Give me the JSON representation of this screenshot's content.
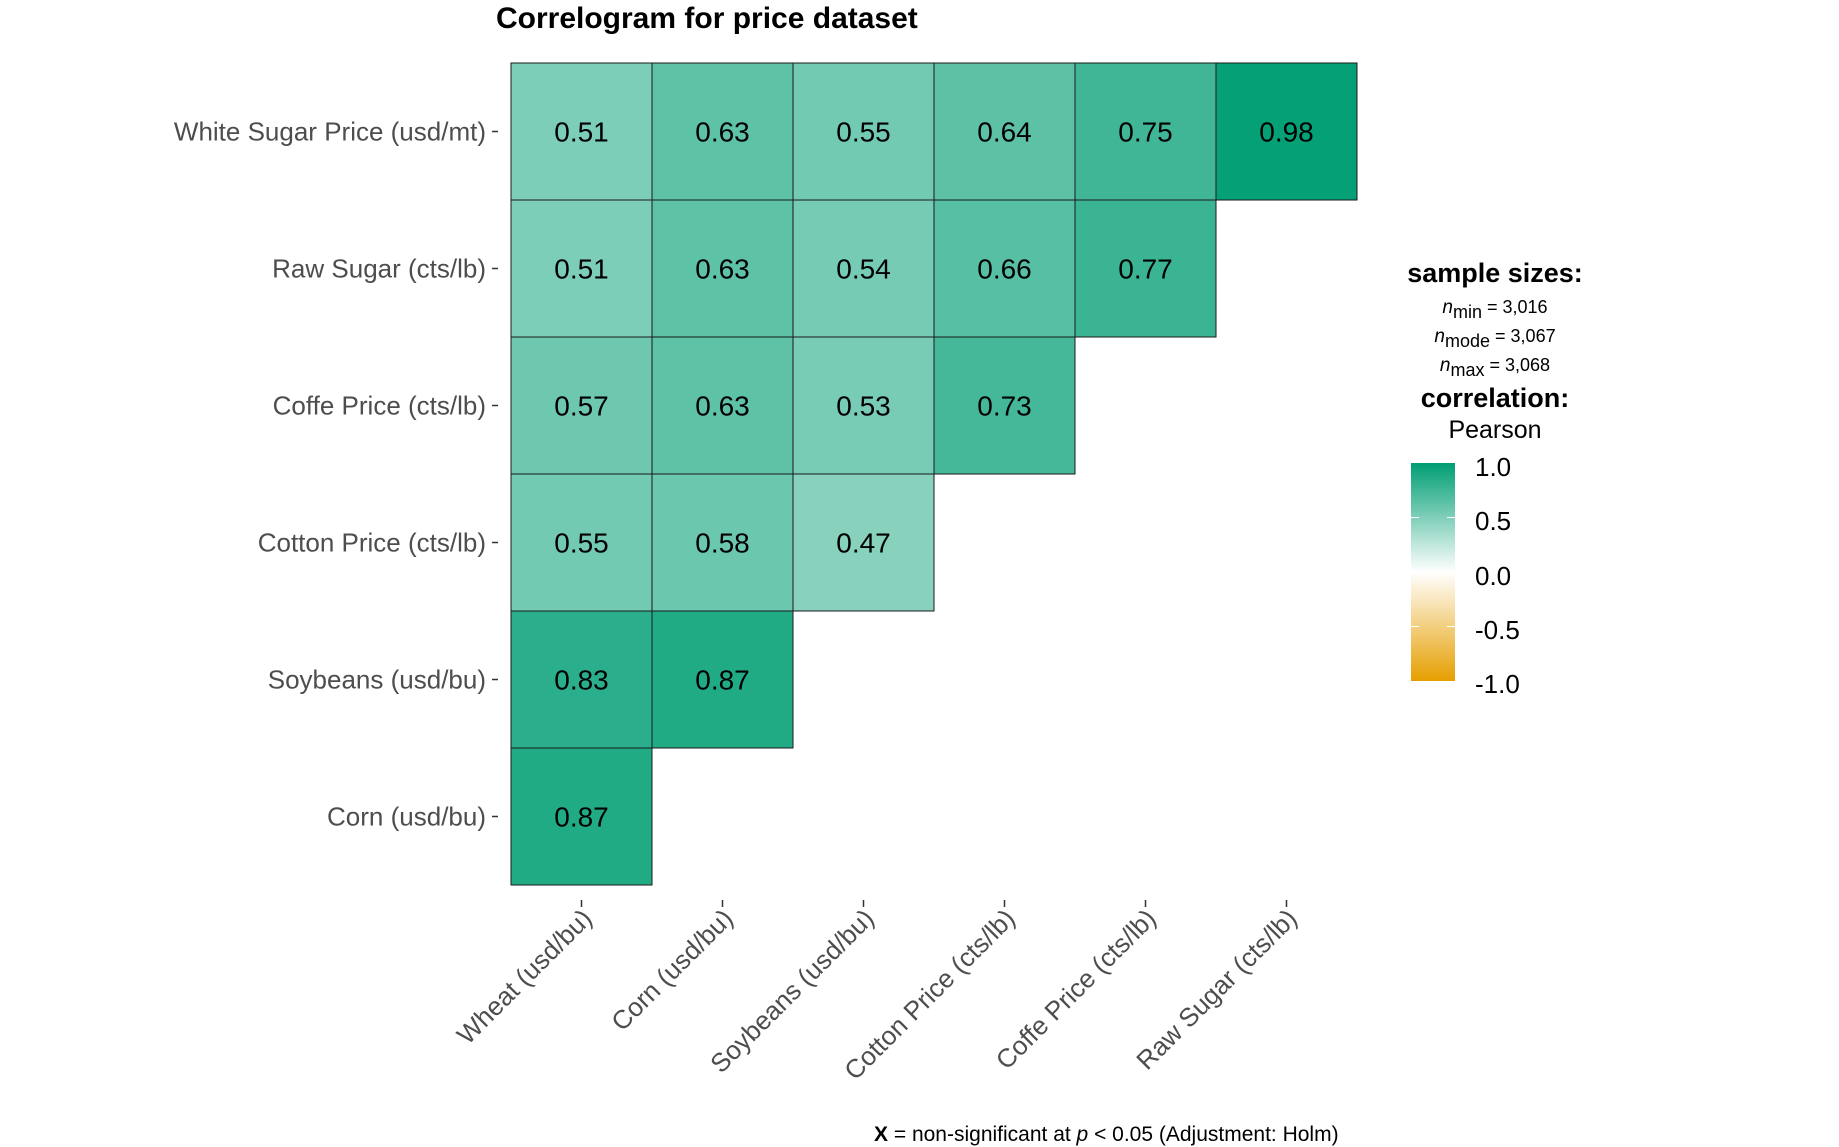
{
  "chart_data": {
    "type": "heatmap",
    "title": "Correlogram for price dataset",
    "x_labels": [
      "Wheat (usd/bu)",
      "Corn  (usd/bu)",
      "Soybeans  (usd/bu)",
      "Cotton Price (cts/lb)",
      "Coffe Price (cts/lb)",
      "Raw Sugar  (cts/lb)"
    ],
    "y_labels": [
      "White Sugar Price (usd/mt)",
      "Raw Sugar  (cts/lb)",
      "Coffe Price (cts/lb)",
      "Cotton Price (cts/lb)",
      "Soybeans  (usd/bu)",
      "Corn  (usd/bu)"
    ],
    "values": [
      [
        0.51,
        0.63,
        0.55,
        0.64,
        0.75,
        0.98
      ],
      [
        0.51,
        0.63,
        0.54,
        0.66,
        0.77,
        null
      ],
      [
        0.57,
        0.63,
        0.53,
        0.73,
        null,
        null
      ],
      [
        0.55,
        0.58,
        0.47,
        null,
        null,
        null
      ],
      [
        0.83,
        0.87,
        null,
        null,
        null,
        null
      ],
      [
        0.87,
        null,
        null,
        null,
        null,
        null
      ]
    ],
    "color_scale": {
      "low": "#E69F00",
      "mid": "#FFFFFF",
      "high": "#009E73",
      "range": [
        -1.0,
        1.0
      ]
    }
  },
  "legend": {
    "sample_title": "sample sizes:",
    "n_min_label": "min",
    "n_min_value": "= 3,016",
    "n_mode_label": "mode",
    "n_mode_value": "= 3,067",
    "n_max_label": "max",
    "n_max_value": "= 3,068",
    "n_symbol": "n",
    "corr_title": "correlation:",
    "corr_method": "Pearson",
    "ticks": [
      "1.0",
      "0.5",
      "0.0",
      "-0.5",
      "-1.0"
    ]
  },
  "caption": {
    "x_mark": "X",
    "text": " = non-significant at ",
    "p": "p",
    "rest": " < 0.05 (Adjustment: Holm)"
  }
}
